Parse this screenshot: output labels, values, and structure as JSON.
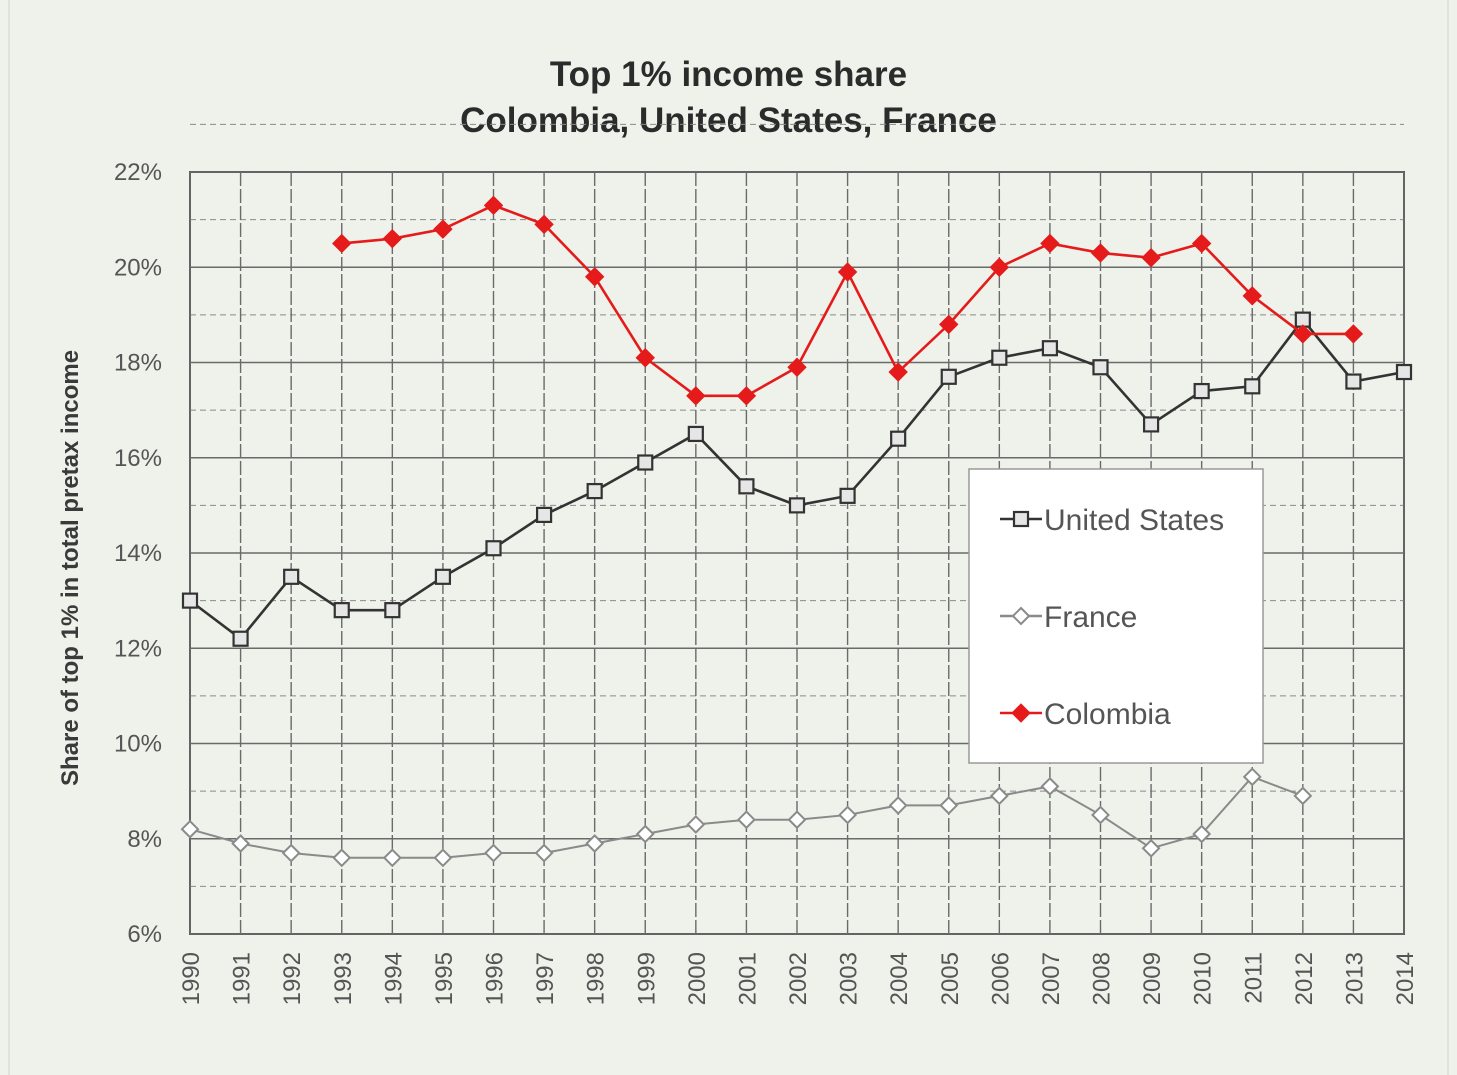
{
  "chart_data": {
    "type": "line",
    "title": "Top 1% income share",
    "subtitle": "Colombia, United States, France",
    "ylabel": "Share of top 1% in total pretax income",
    "xlabel": "",
    "ylim": [
      6,
      22
    ],
    "yticks": [
      "6%",
      "8%",
      "10%",
      "12%",
      "14%",
      "16%",
      "18%",
      "20%",
      "22%"
    ],
    "x": [
      "1990",
      "1991",
      "1992",
      "1993",
      "1994",
      "1995",
      "1996",
      "1997",
      "1998",
      "1999",
      "2000",
      "2001",
      "2002",
      "2003",
      "2004",
      "2005",
      "2006",
      "2007",
      "2008",
      "2009",
      "2010",
      "2011",
      "2012",
      "2013",
      "2014"
    ],
    "grid": true,
    "legend_position": "right",
    "series": [
      {
        "name": "United States",
        "color": "#333333",
        "marker": "square",
        "values": [
          13.0,
          12.2,
          13.5,
          12.8,
          12.8,
          13.5,
          14.1,
          14.8,
          15.3,
          15.9,
          16.5,
          15.4,
          15.0,
          15.2,
          16.4,
          17.7,
          18.1,
          18.3,
          17.9,
          16.7,
          17.4,
          17.5,
          18.9,
          17.6,
          17.8
        ]
      },
      {
        "name": "France",
        "color": "#8a8a8a",
        "marker": "diamond-open",
        "values": [
          8.2,
          7.9,
          7.7,
          7.6,
          7.6,
          7.6,
          7.7,
          7.7,
          7.9,
          8.1,
          8.3,
          8.4,
          8.4,
          8.5,
          8.7,
          8.7,
          8.9,
          9.1,
          8.5,
          7.8,
          8.1,
          9.3,
          8.9,
          null,
          null
        ]
      },
      {
        "name": "Colombia",
        "color": "#e51b1b",
        "marker": "diamond",
        "values": [
          null,
          null,
          null,
          20.5,
          20.6,
          20.8,
          21.3,
          20.9,
          19.8,
          18.1,
          17.3,
          17.3,
          17.9,
          19.9,
          17.8,
          18.8,
          20.0,
          20.5,
          20.3,
          20.2,
          20.5,
          19.4,
          18.6,
          18.6,
          null
        ]
      }
    ]
  }
}
